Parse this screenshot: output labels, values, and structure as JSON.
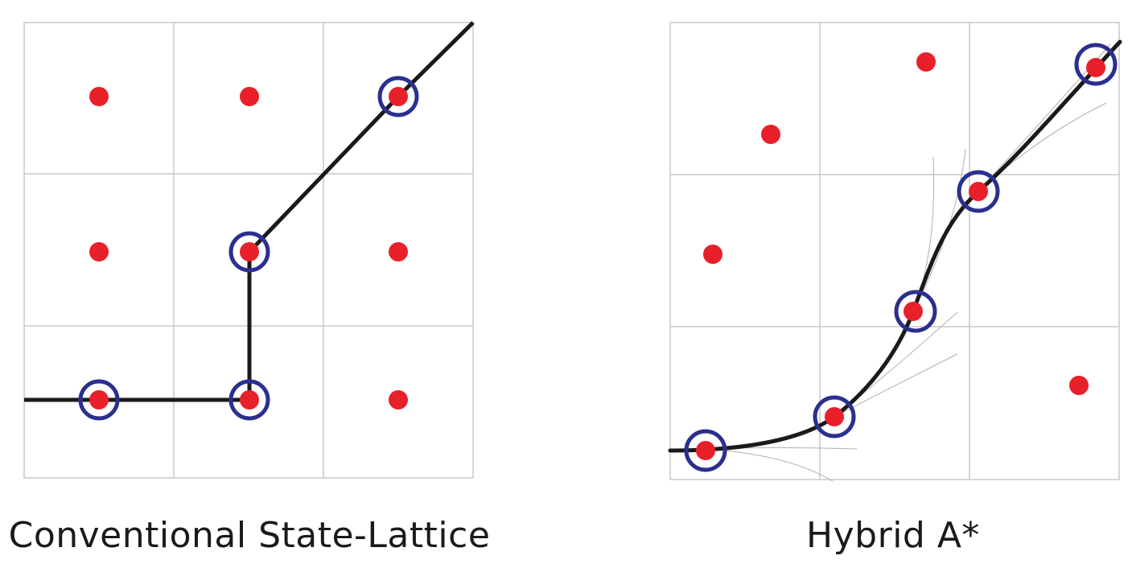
{
  "panels": {
    "left": {
      "caption": "Conventional State-Lattice"
    },
    "right": {
      "caption": "Hybrid A*"
    }
  },
  "colors": {
    "grid": "#c8c8c8",
    "node": "#e8202a",
    "ring": "#2b2f8f",
    "path": "#1a1a1a",
    "branch": "#b0b0b0"
  }
}
